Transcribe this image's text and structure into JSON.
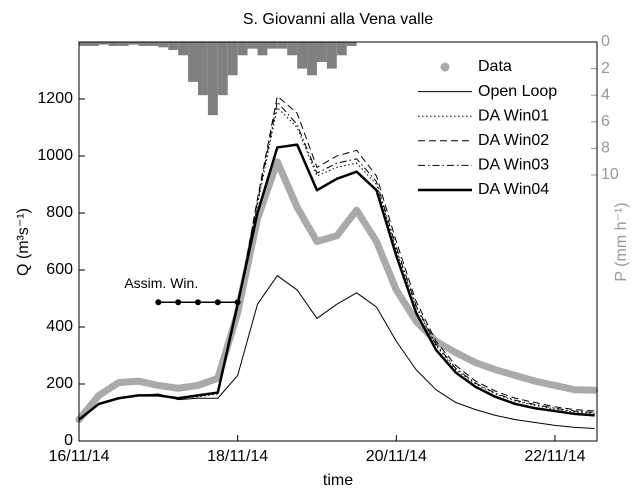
{
  "chart_data": {
    "type": "line",
    "title": "S. Giovanni alla Vena valle",
    "xlabel": "time",
    "ylabel": "Q (m³s⁻¹)",
    "y2label": "P (mm h⁻¹)",
    "xlim": [
      0,
      6.53
    ],
    "xticks": [
      {
        "value": 0,
        "label": "16/11/14"
      },
      {
        "value": 2,
        "label": "18/11/14"
      },
      {
        "value": 4,
        "label": "20/11/14"
      },
      {
        "value": 6,
        "label": "22/11/14"
      }
    ],
    "ylim": [
      0,
      1400
    ],
    "yticks": [
      0,
      200,
      400,
      600,
      800,
      1000,
      1200
    ],
    "y2lim": [
      30,
      0
    ],
    "y2ticks": [
      0,
      2,
      4,
      6,
      8,
      10
    ],
    "legend": "upper right",
    "x": [
      0,
      0.25,
      0.5,
      0.75,
      1,
      1.25,
      1.5,
      1.75,
      2,
      2.25,
      2.5,
      2.75,
      3,
      3.25,
      3.5,
      3.75,
      4,
      4.25,
      4.5,
      4.75,
      5,
      5.25,
      5.5,
      5.75,
      6,
      6.25,
      6.5
    ],
    "series": [
      {
        "name": "Data",
        "color": "#aaaaaa",
        "linestyle": "-",
        "linewidth": 7,
        "marker": "o",
        "values": [
          75,
          160,
          205,
          210,
          195,
          185,
          195,
          220,
          450,
          780,
          980,
          820,
          700,
          720,
          810,
          700,
          530,
          420,
          350,
          310,
          275,
          250,
          230,
          210,
          195,
          180,
          178
        ]
      },
      {
        "name": "Open Loop",
        "color": "#000000",
        "linestyle": "-",
        "linewidth": 1,
        "values": [
          75,
          130,
          150,
          160,
          165,
          145,
          150,
          150,
          230,
          480,
          580,
          530,
          430,
          480,
          520,
          470,
          350,
          250,
          180,
          135,
          110,
          90,
          75,
          65,
          55,
          48,
          44
        ]
      },
      {
        "name": "DA Win01",
        "color": "#000000",
        "linestyle": ":",
        "linewidth": 1,
        "values": [
          75,
          130,
          150,
          160,
          160,
          150,
          155,
          165,
          470,
          830,
          1170,
          1100,
          930,
          960,
          975,
          900,
          670,
          470,
          335,
          250,
          200,
          165,
          140,
          125,
          112,
          102,
          97
        ]
      },
      {
        "name": "DA Win02",
        "color": "#000000",
        "linestyle": "--",
        "linewidth": 1,
        "values": [
          75,
          130,
          150,
          160,
          160,
          150,
          160,
          170,
          470,
          850,
          1210,
          1150,
          960,
          1000,
          1020,
          930,
          700,
          490,
          350,
          265,
          210,
          175,
          150,
          135,
          120,
          110,
          105
        ]
      },
      {
        "name": "DA Win03",
        "color": "#000000",
        "linestyle": "-.",
        "linewidth": 1,
        "values": [
          75,
          130,
          150,
          160,
          160,
          150,
          158,
          168,
          470,
          840,
          1190,
          1110,
          940,
          975,
          990,
          910,
          680,
          475,
          340,
          255,
          203,
          168,
          143,
          128,
          115,
          105,
          100
        ]
      },
      {
        "name": "DA Win04",
        "color": "#000000",
        "linestyle": "-",
        "linewidth": 2.5,
        "values": [
          75,
          130,
          150,
          160,
          160,
          150,
          160,
          170,
          480,
          800,
          1030,
          1040,
          880,
          920,
          945,
          880,
          650,
          450,
          320,
          240,
          190,
          155,
          130,
          115,
          105,
          95,
          90
        ]
      }
    ],
    "precip": {
      "color": "#808080",
      "axis": "y2",
      "x": [
        0,
        0.125,
        0.25,
        0.375,
        0.5,
        0.625,
        0.75,
        0.875,
        1,
        1.125,
        1.25,
        1.375,
        1.5,
        1.625,
        1.75,
        1.875,
        2,
        2.125,
        2.25,
        2.375,
        2.5,
        2.625,
        2.75,
        2.875,
        3,
        3.125,
        3.25,
        3.375
      ],
      "values": [
        0.3,
        0.3,
        0.2,
        0.3,
        0.3,
        0.2,
        0.3,
        0.3,
        0.4,
        0.6,
        1,
        3,
        4,
        5.5,
        4,
        2.5,
        1,
        0.5,
        1,
        0.5,
        0.5,
        1,
        2,
        2.5,
        1.5,
        2,
        1,
        0.3
      ]
    },
    "annotation": {
      "label": "Assim. Win.",
      "x": [
        1,
        1.25,
        1.5,
        1.75,
        2
      ],
      "y": 487
    }
  }
}
